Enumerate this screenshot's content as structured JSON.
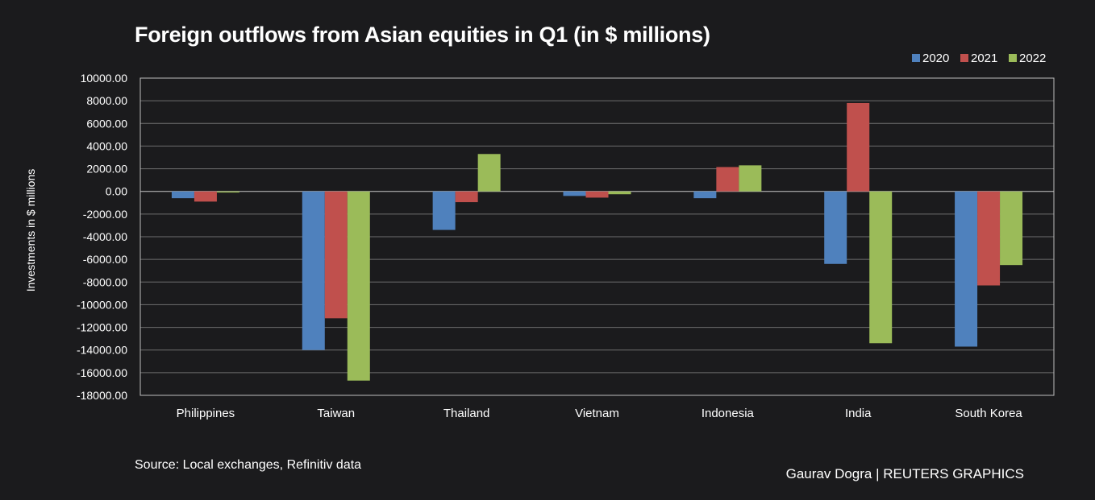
{
  "chart_data": {
    "type": "bar",
    "title": "Foreign outflows from Asian equities in Q1 (in $ millions)",
    "xlabel": "",
    "ylabel": "Investments in $ millions",
    "categories": [
      "Philippines",
      "Taiwan",
      "Thailand",
      "Vietnam",
      "Indonesia",
      "India",
      "South Korea"
    ],
    "series": [
      {
        "name": "2020",
        "color": "#4f81bd",
        "values": [
          -600,
          -14000,
          -3400,
          -400,
          -600,
          -6400,
          -13700
        ]
      },
      {
        "name": "2021",
        "color": "#c0504d",
        "values": [
          -900,
          -11200,
          -950,
          -550,
          2150,
          7800,
          -8300
        ]
      },
      {
        "name": "2022",
        "color": "#9bbb59",
        "values": [
          -100,
          -16700,
          3300,
          -250,
          2300,
          -13400,
          -6500
        ]
      }
    ],
    "ylim": [
      -18000,
      10000
    ],
    "yticks": [
      10000,
      8000,
      6000,
      4000,
      2000,
      0,
      -2000,
      -4000,
      -6000,
      -8000,
      -10000,
      -12000,
      -14000,
      -16000,
      -18000
    ],
    "ytick_labels": [
      "10000.00",
      "8000.00",
      "6000.00",
      "4000.00",
      "2000.00",
      "0.00",
      "-2000.00",
      "-4000.00",
      "-6000.00",
      "-8000.00",
      "-10000.00",
      "-12000.00",
      "-14000.00",
      "-16000.00",
      "-18000.00"
    ],
    "grid": true,
    "legend_position": "top-right"
  },
  "footer": {
    "source": "Source: Local exchanges, Refinitiv data",
    "credit": "Gaurav Dogra | REUTERS GRAPHICS"
  }
}
